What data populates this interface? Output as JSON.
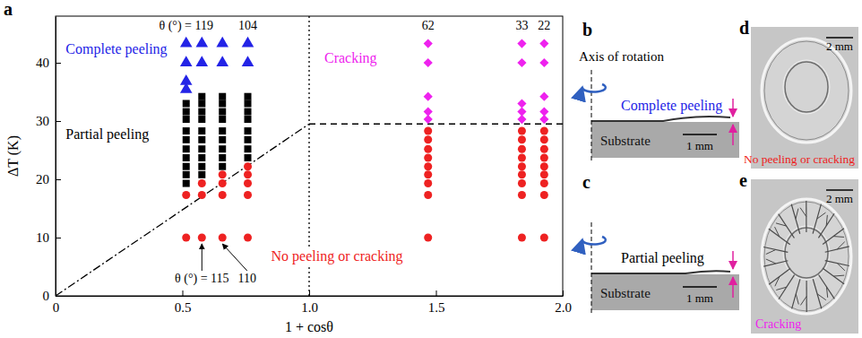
{
  "chart_data": {
    "type": "scatter",
    "letter": "a",
    "x_label": "1 + cosθ",
    "y_label": "ΔT (K)",
    "xlim": [
      0,
      2
    ],
    "xticks": [
      0,
      0.5,
      {
        "value": 1,
        "label": "1.0"
      },
      1.5,
      {
        "value": 2,
        "label": "2.0"
      }
    ],
    "ylim": [
      0,
      48
    ],
    "yticks": [
      0,
      10,
      20,
      30,
      40
    ],
    "series": [
      {
        "name": "Complete peeling",
        "color": "#2323e6",
        "marker": "triangle",
        "x": [
          0.515,
          0.515,
          0.515,
          0.515,
          0.577,
          0.577,
          0.658,
          0.658,
          0.758,
          0.758
        ],
        "values": [
          35.4,
          36.8,
          40,
          43.3,
          40,
          43.3,
          40,
          43.3,
          40,
          43.3
        ]
      },
      {
        "name": "Partial peeling",
        "color": "#000000",
        "marker": "square",
        "x": [
          0.515,
          0.515,
          0.515,
          0.515,
          0.515,
          0.515,
          0.515,
          0.515,
          0.515,
          0.515,
          0.577,
          0.577,
          0.577,
          0.577,
          0.577,
          0.577,
          0.577,
          0.577,
          0.577,
          0.577,
          0.658,
          0.658,
          0.658,
          0.658,
          0.658,
          0.658,
          0.658,
          0.658,
          0.658,
          0.758,
          0.758,
          0.758,
          0.758,
          0.758,
          0.758,
          0.758,
          0.758
        ],
        "values": [
          19.3,
          20.8,
          22.2,
          23.7,
          25.2,
          26.8,
          28.3,
          30.3,
          31.6,
          33,
          20.8,
          22.2,
          23.7,
          25.2,
          26.8,
          28.3,
          30.3,
          31.6,
          33,
          34.2,
          22.2,
          23.7,
          25.2,
          26.8,
          28.3,
          30.3,
          31.6,
          33,
          34.2,
          23.7,
          25.2,
          26.8,
          28.3,
          30.3,
          31.6,
          33,
          34.2
        ]
      },
      {
        "name": "Cracking",
        "color": "#ee22ee",
        "marker": "diamond",
        "x": [
          1.469,
          1.469,
          1.469,
          1.469,
          1.469,
          1.839,
          1.839,
          1.839,
          1.839,
          1.839,
          1.927,
          1.927,
          1.927,
          1.927,
          1.927
        ],
        "values": [
          30.3,
          31.6,
          34.2,
          40,
          43.3,
          30.3,
          31.6,
          33,
          40,
          43.3,
          30.3,
          31.6,
          34.2,
          40,
          43.3
        ]
      },
      {
        "name": "No peeling or cracking",
        "color": "#ee2222",
        "marker": "circle",
        "x": [
          0.515,
          0.515,
          0.577,
          0.577,
          0.577,
          0.658,
          0.658,
          0.658,
          0.658,
          0.758,
          0.758,
          0.758,
          0.758,
          0.758,
          1.469,
          1.469,
          1.469,
          1.469,
          1.469,
          1.469,
          1.469,
          1.469,
          1.469,
          1.839,
          1.839,
          1.839,
          1.839,
          1.839,
          1.839,
          1.839,
          1.839,
          1.839,
          1.927,
          1.927,
          1.927,
          1.927,
          1.927,
          1.927,
          1.927,
          1.927,
          1.927
        ],
        "values": [
          10,
          17.3,
          10,
          17.3,
          19.3,
          10,
          17.3,
          19.3,
          20.8,
          10,
          17.3,
          19.3,
          20.8,
          22.2,
          10,
          17.3,
          19.3,
          20.8,
          22.2,
          23.7,
          25.2,
          26.8,
          28.3,
          10,
          17.3,
          19.3,
          20.8,
          22.2,
          23.7,
          25.2,
          26.8,
          28.3,
          10,
          17.3,
          19.3,
          20.8,
          22.2,
          23.7,
          25.2,
          26.8,
          28.3
        ]
      }
    ],
    "boundaries": [
      {
        "line_style": "dashdot",
        "x": [
          0,
          1
        ],
        "values": [
          0,
          29.5
        ]
      },
      {
        "line_style": "dotted",
        "x": [
          1,
          1
        ],
        "values": [
          0,
          48
        ]
      },
      {
        "line_style": "dashed",
        "x": [
          1,
          2
        ],
        "values": [
          29.5,
          29.5
        ]
      }
    ],
    "angle_labels": {
      "top": [
        {
          "text": "θ (°) = 119",
          "x": 0.515
        },
        {
          "text": "104",
          "x": 0.758
        },
        {
          "text": "62",
          "x": 1.469
        },
        {
          "text": "33",
          "x": 1.839
        },
        {
          "text": "22",
          "x": 1.927
        }
      ],
      "bottom": [
        {
          "text": "θ (°) = 115",
          "x": 0.577
        },
        {
          "text": "110",
          "x": 0.658
        }
      ]
    }
  },
  "panels": [
    {
      "letter": "b",
      "axis_label": "Axis of rotation",
      "caption": "Complete peeling",
      "color": "#2323e6",
      "substrate": "Substrate",
      "scale_bar": "1 mm"
    },
    {
      "letter": "c",
      "caption": "Partial peeling",
      "color": "#000000",
      "substrate": "Substrate",
      "scale_bar": "1 mm"
    },
    {
      "letter": "d",
      "caption": "No peeling or cracking",
      "color": "#ee2222",
      "scale_bar": "2 mm"
    },
    {
      "letter": "e",
      "caption": "Cracking",
      "color": "#ee22ee",
      "scale_bar": "2 mm"
    }
  ]
}
